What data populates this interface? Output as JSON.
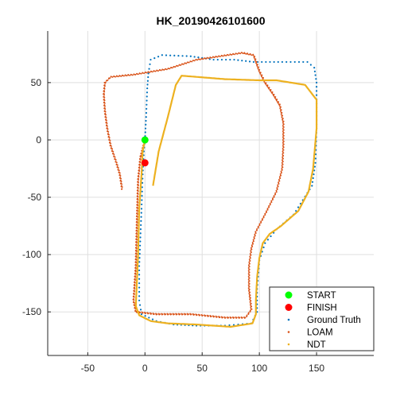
{
  "chart_data": {
    "type": "scatter",
    "title": "HK_20190426101600",
    "xlabel": "",
    "ylabel": "",
    "xlim": [
      -85,
      200
    ],
    "ylim": [
      -188,
      95
    ],
    "xticks": [
      -50,
      0,
      50,
      100,
      150
    ],
    "yticks": [
      -150,
      -100,
      -50,
      0,
      50
    ],
    "grid": true,
    "legend_position": "bottom-right",
    "series": [
      {
        "name": "START",
        "color": "#00ff00",
        "marker": "circle-large",
        "points": [
          [
            0,
            0
          ]
        ]
      },
      {
        "name": "FINISH",
        "color": "#ff0000",
        "marker": "circle-large",
        "points": [
          [
            0,
            -20
          ]
        ]
      },
      {
        "name": "Ground Truth",
        "color": "#0072bd",
        "marker": "dot-sparse",
        "points": [
          [
            0,
            0
          ],
          [
            1,
            20
          ],
          [
            2,
            45
          ],
          [
            3,
            58
          ],
          [
            5,
            70
          ],
          [
            15,
            74
          ],
          [
            40,
            73
          ],
          [
            60,
            70
          ],
          [
            78,
            70
          ],
          [
            95,
            68
          ],
          [
            120,
            68
          ],
          [
            142,
            68
          ],
          [
            148,
            63
          ],
          [
            150,
            50
          ],
          [
            150,
            10
          ],
          [
            149,
            -20
          ],
          [
            146,
            -40
          ],
          [
            130,
            -65
          ],
          [
            115,
            -78
          ],
          [
            105,
            -90
          ],
          [
            100,
            -105
          ],
          [
            98,
            -130
          ],
          [
            98,
            -150
          ],
          [
            93,
            -160
          ],
          [
            70,
            -162
          ],
          [
            45,
            -162
          ],
          [
            25,
            -161
          ],
          [
            10,
            -158
          ],
          [
            -3,
            -152
          ],
          [
            -5,
            -140
          ],
          [
            -5,
            -110
          ],
          [
            -3,
            -60
          ],
          [
            -2,
            -30
          ],
          [
            -1,
            -10
          ],
          [
            0,
            0
          ]
        ]
      },
      {
        "name": "LOAM",
        "color": "#d95319",
        "marker": "dot-dense",
        "points": [
          [
            -20,
            -43
          ],
          [
            -22,
            -30
          ],
          [
            -25,
            -20
          ],
          [
            -30,
            -5
          ],
          [
            -33,
            10
          ],
          [
            -35,
            25
          ],
          [
            -36,
            40
          ],
          [
            -35,
            50
          ],
          [
            -30,
            55
          ],
          [
            -10,
            57
          ],
          [
            20,
            62
          ],
          [
            45,
            70
          ],
          [
            65,
            73
          ],
          [
            85,
            76
          ],
          [
            95,
            74
          ],
          [
            100,
            60
          ],
          [
            105,
            50
          ],
          [
            112,
            40
          ],
          [
            118,
            30
          ],
          [
            121,
            15
          ],
          [
            121,
            -5
          ],
          [
            120,
            -25
          ],
          [
            115,
            -45
          ],
          [
            105,
            -65
          ],
          [
            97,
            -80
          ],
          [
            93,
            -95
          ],
          [
            91,
            -110
          ],
          [
            91,
            -130
          ],
          [
            93,
            -148
          ],
          [
            88,
            -155
          ],
          [
            70,
            -155
          ],
          [
            40,
            -152
          ],
          [
            10,
            -152
          ],
          [
            -8,
            -150
          ],
          [
            -10,
            -140
          ],
          [
            -8,
            -110
          ],
          [
            -7,
            -70
          ],
          [
            -6,
            -35
          ],
          [
            -4,
            -15
          ],
          [
            0,
            0
          ]
        ]
      },
      {
        "name": "NDT",
        "color": "#edb120",
        "marker": "line-dense",
        "points": [
          [
            7,
            -40
          ],
          [
            12,
            -10
          ],
          [
            20,
            20
          ],
          [
            27,
            48
          ],
          [
            32,
            56
          ],
          [
            45,
            55
          ],
          [
            70,
            53
          ],
          [
            100,
            52
          ],
          [
            115,
            52
          ],
          [
            140,
            48
          ],
          [
            150,
            35
          ],
          [
            150,
            10
          ],
          [
            147,
            -25
          ],
          [
            143,
            -45
          ],
          [
            134,
            -62
          ],
          [
            119,
            -75
          ],
          [
            109,
            -82
          ],
          [
            103,
            -90
          ],
          [
            100,
            -103
          ],
          [
            98,
            -120
          ],
          [
            97,
            -140
          ],
          [
            97,
            -152
          ],
          [
            94,
            -160
          ],
          [
            75,
            -163
          ],
          [
            45,
            -161
          ],
          [
            20,
            -160
          ],
          [
            5,
            -158
          ],
          [
            -5,
            -153
          ],
          [
            -8,
            -145
          ],
          [
            -6,
            -100
          ],
          [
            -5,
            -60
          ],
          [
            -3,
            -30
          ],
          [
            -2,
            -10
          ],
          [
            0,
            0
          ]
        ]
      }
    ]
  }
}
